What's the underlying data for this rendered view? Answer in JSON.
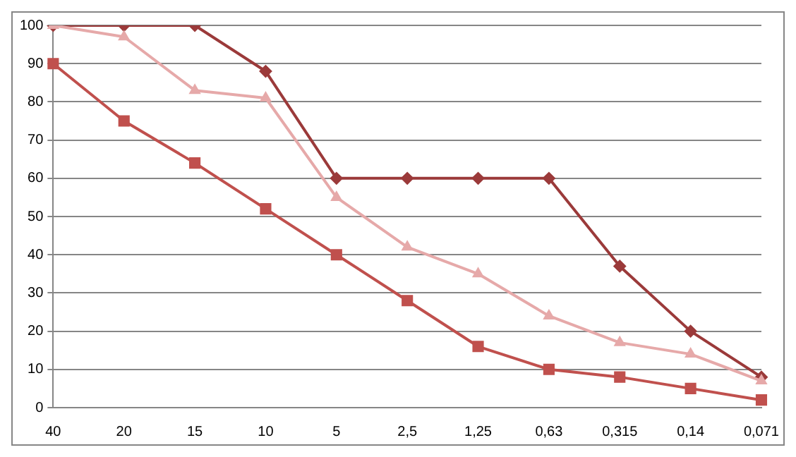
{
  "chart_data": {
    "type": "line",
    "categories": [
      "40",
      "20",
      "15",
      "10",
      "5",
      "2,5",
      "1,25",
      "0,63",
      "0,315",
      "0,14",
      "0,071"
    ],
    "series": [
      {
        "color": "#9b3a3a",
        "marker": "diamond",
        "values": [
          100,
          100,
          100,
          88,
          60,
          60,
          60,
          60,
          37,
          20,
          8
        ]
      },
      {
        "color": "#e6a9a9",
        "marker": "triangle",
        "values": [
          100,
          97,
          83,
          81,
          55,
          42,
          35,
          24,
          17,
          14,
          7
        ]
      },
      {
        "color": "#c0504d",
        "marker": "square",
        "values": [
          90,
          75,
          64,
          52,
          40,
          28,
          16,
          10,
          8,
          5,
          2
        ]
      }
    ],
    "ylim": [
      0,
      100
    ],
    "yticks": [
      0,
      10,
      20,
      30,
      40,
      50,
      60,
      70,
      80,
      90,
      100
    ],
    "grid": "y",
    "legend": false
  }
}
